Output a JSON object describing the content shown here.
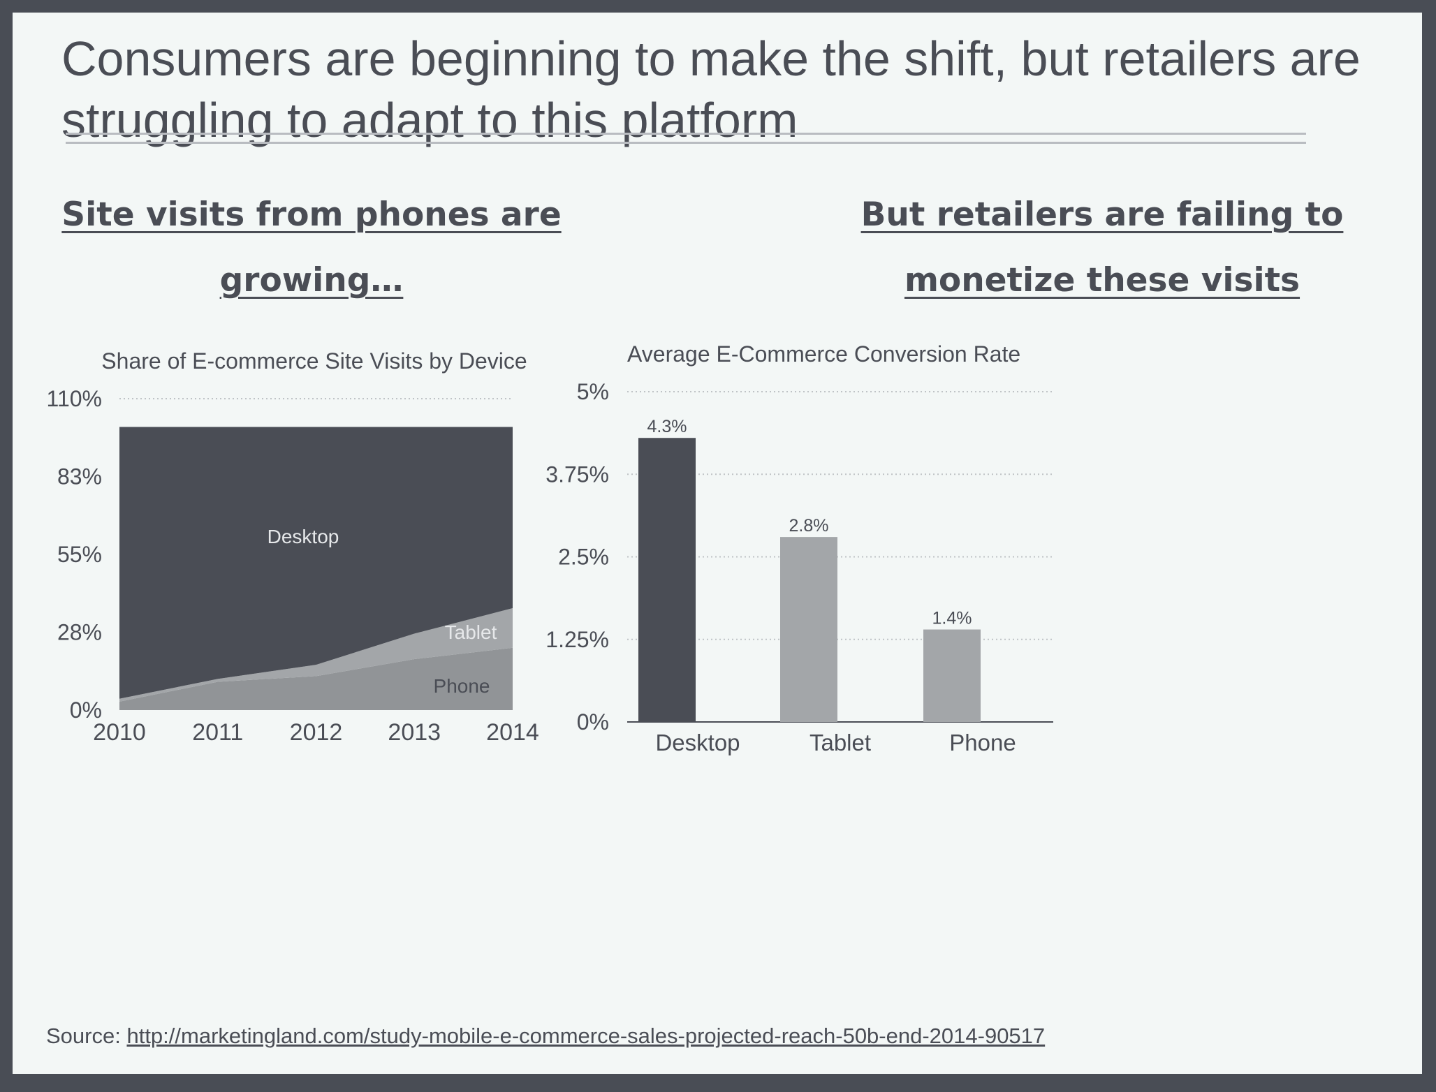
{
  "slide": {
    "title": "Consumers are beginning to make the shift, but retailers are struggling to adapt to this platform",
    "left_heading": "Site visits from phones are growing…",
    "right_heading": "But retailers are failing to monetize these visits",
    "source_label": "Source:",
    "source_link": "http://marketingland.com/study-mobile-e-commerce-sales-projected-reach-50b-end-2014-90517"
  },
  "colors": {
    "background": "#f3f7f6",
    "text": "#4a4d55",
    "desktop": "#4a4d55",
    "tablet": "#a3a6a9",
    "phone": "#919497",
    "gridline": "#bfc3c6"
  },
  "chart_data": [
    {
      "type": "area",
      "stacked": true,
      "title": "Share of E-commerce Site Visits by Device",
      "x": [
        2010,
        2011,
        2012,
        2013,
        2014
      ],
      "y_ticks": [
        "0%",
        "28%",
        "55%",
        "83%",
        "110%"
      ],
      "y_tick_values": [
        0,
        27.5,
        55,
        82.5,
        110
      ],
      "ylim": [
        0,
        110
      ],
      "grid": "horizontal dotted",
      "series": [
        {
          "name": "Phone",
          "values": [
            3,
            10,
            12,
            18,
            22
          ],
          "color": "#919497"
        },
        {
          "name": "Tablet",
          "values": [
            1,
            1,
            4,
            9,
            14
          ],
          "color": "#a3a6a9"
        },
        {
          "name": "Desktop",
          "values": [
            96,
            89,
            84,
            73,
            64
          ],
          "color": "#4a4d55"
        }
      ]
    },
    {
      "type": "bar",
      "title": "Average E-Commerce Conversion Rate",
      "categories": [
        "Desktop",
        "Tablet",
        "Phone"
      ],
      "values": [
        4.3,
        2.8,
        1.4
      ],
      "data_labels": [
        "4.3%",
        "2.8%",
        "1.4%"
      ],
      "colors": [
        "#4a4d55",
        "#a3a6a9",
        "#a3a6a9"
      ],
      "y_ticks": [
        "0%",
        "1.25%",
        "2.5%",
        "3.75%",
        "5%"
      ],
      "y_tick_values": [
        0,
        1.25,
        2.5,
        3.75,
        5
      ],
      "ylim": [
        0,
        5
      ],
      "grid": "horizontal dotted"
    }
  ]
}
